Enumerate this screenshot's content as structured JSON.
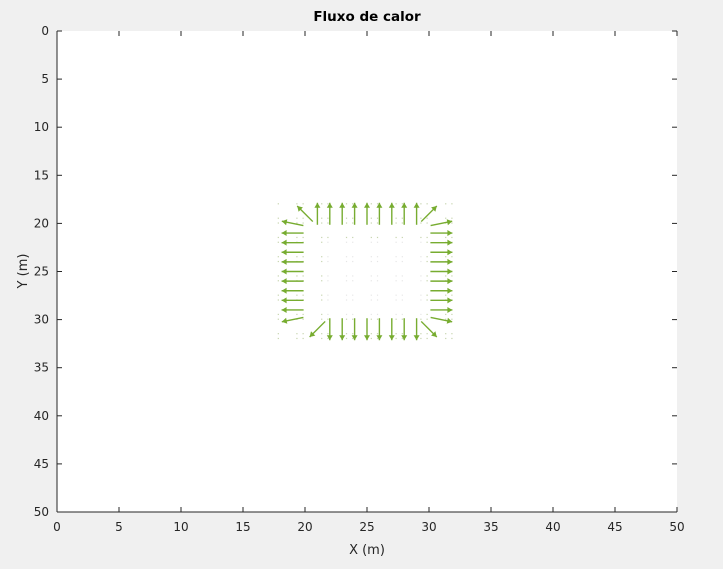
{
  "chart_data": {
    "type": "quiver",
    "title": "Fluxo de calor",
    "xlabel": "X (m)",
    "ylabel": "Y (m)",
    "xlim": [
      0,
      50
    ],
    "ylim": [
      0,
      50
    ],
    "y_axis_reversed": true,
    "xticks": [
      "0",
      "5",
      "10",
      "15",
      "20",
      "25",
      "30",
      "35",
      "40",
      "45",
      "50"
    ],
    "yticks": [
      "0",
      "5",
      "10",
      "15",
      "20",
      "25",
      "30",
      "35",
      "40",
      "45",
      "50"
    ],
    "grid": false,
    "legend": "none",
    "arrow_color": "#77ac30",
    "hole_region": {
      "x": [
        22,
        29
      ],
      "y": [
        22,
        29
      ]
    },
    "vectors": [
      {
        "x": 20,
        "y": 19,
        "u": -0.8,
        "v": -0.8
      },
      {
        "x": 21,
        "y": 19,
        "u": 0,
        "v": -1
      },
      {
        "x": 22,
        "y": 19,
        "u": 0,
        "v": -1
      },
      {
        "x": 23,
        "y": 19,
        "u": 0,
        "v": -1
      },
      {
        "x": 24,
        "y": 19,
        "u": 0,
        "v": -1
      },
      {
        "x": 25,
        "y": 19,
        "u": 0,
        "v": -1
      },
      {
        "x": 26,
        "y": 19,
        "u": 0,
        "v": -1
      },
      {
        "x": 27,
        "y": 19,
        "u": 0,
        "v": -1
      },
      {
        "x": 28,
        "y": 19,
        "u": 0,
        "v": -1
      },
      {
        "x": 29,
        "y": 19,
        "u": 0,
        "v": -1
      },
      {
        "x": 30,
        "y": 19,
        "u": 0.8,
        "v": -0.8
      },
      {
        "x": 21,
        "y": 31,
        "u": -0.8,
        "v": 0.8
      },
      {
        "x": 22,
        "y": 31,
        "u": 0,
        "v": 1
      },
      {
        "x": 23,
        "y": 31,
        "u": 0,
        "v": 1
      },
      {
        "x": 24,
        "y": 31,
        "u": 0,
        "v": 1
      },
      {
        "x": 25,
        "y": 31,
        "u": 0,
        "v": 1
      },
      {
        "x": 26,
        "y": 31,
        "u": 0,
        "v": 1
      },
      {
        "x": 27,
        "y": 31,
        "u": 0,
        "v": 1
      },
      {
        "x": 28,
        "y": 31,
        "u": 0,
        "v": 1
      },
      {
        "x": 29,
        "y": 31,
        "u": 0,
        "v": 1
      },
      {
        "x": 30,
        "y": 31,
        "u": 0.8,
        "v": 0.8
      },
      {
        "x": 19,
        "y": 20,
        "u": -1,
        "v": -0.2
      },
      {
        "x": 19,
        "y": 21,
        "u": -1,
        "v": 0
      },
      {
        "x": 19,
        "y": 22,
        "u": -1,
        "v": 0
      },
      {
        "x": 19,
        "y": 23,
        "u": -1,
        "v": 0
      },
      {
        "x": 19,
        "y": 24,
        "u": -1,
        "v": 0
      },
      {
        "x": 19,
        "y": 25,
        "u": -1,
        "v": 0
      },
      {
        "x": 19,
        "y": 26,
        "u": -1,
        "v": 0
      },
      {
        "x": 19,
        "y": 27,
        "u": -1,
        "v": 0
      },
      {
        "x": 19,
        "y": 28,
        "u": -1,
        "v": 0
      },
      {
        "x": 19,
        "y": 29,
        "u": -1,
        "v": 0
      },
      {
        "x": 19,
        "y": 30,
        "u": -1,
        "v": 0.2
      },
      {
        "x": 31,
        "y": 20,
        "u": 1,
        "v": -0.2
      },
      {
        "x": 31,
        "y": 21,
        "u": 1,
        "v": 0
      },
      {
        "x": 31,
        "y": 22,
        "u": 1,
        "v": 0
      },
      {
        "x": 31,
        "y": 23,
        "u": 1,
        "v": 0
      },
      {
        "x": 31,
        "y": 24,
        "u": 1,
        "v": 0
      },
      {
        "x": 31,
        "y": 25,
        "u": 1,
        "v": 0
      },
      {
        "x": 31,
        "y": 26,
        "u": 1,
        "v": 0
      },
      {
        "x": 31,
        "y": 27,
        "u": 1,
        "v": 0
      },
      {
        "x": 31,
        "y": 28,
        "u": 1,
        "v": 0
      },
      {
        "x": 31,
        "y": 29,
        "u": 1,
        "v": 0
      },
      {
        "x": 31,
        "y": 30,
        "u": 1,
        "v": 0.2
      }
    ]
  }
}
